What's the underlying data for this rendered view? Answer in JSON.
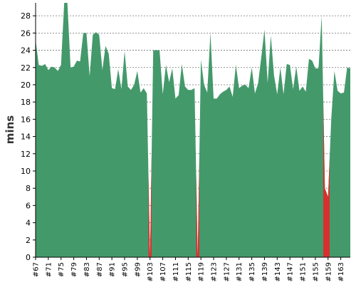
{
  "chart_data": {
    "type": "area",
    "title": "",
    "xlabel": "",
    "ylabel": "mins",
    "ylim": [
      0,
      29.5
    ],
    "yticks": [
      0,
      2,
      4,
      6,
      8,
      10,
      12,
      14,
      16,
      18,
      20,
      22,
      24,
      26,
      28
    ],
    "grid": true,
    "x_prefix": "#",
    "x": [
      67,
      68,
      69,
      70,
      71,
      72,
      73,
      74,
      75,
      76,
      77,
      78,
      79,
      80,
      81,
      82,
      83,
      84,
      85,
      86,
      87,
      88,
      89,
      90,
      91,
      92,
      93,
      94,
      95,
      96,
      97,
      98,
      99,
      100,
      101,
      102,
      103,
      104,
      105,
      106,
      107,
      108,
      109,
      110,
      111,
      112,
      113,
      114,
      115,
      116,
      117,
      118,
      119,
      120,
      121,
      122,
      123,
      124,
      125,
      126,
      127,
      128,
      129,
      130,
      131,
      132,
      133,
      134,
      135,
      136,
      137,
      138,
      139,
      140,
      141,
      142,
      143,
      144,
      145,
      146,
      147,
      148,
      149,
      150,
      151,
      152,
      153,
      154,
      155,
      156,
      157,
      158,
      159,
      160,
      161,
      162,
      163,
      164,
      165,
      166
    ],
    "values": [
      25.2,
      22.3,
      22.2,
      22.4,
      21.7,
      22.1,
      22.0,
      21.6,
      22.3,
      29.5,
      29.5,
      22.0,
      22.1,
      22.8,
      22.7,
      26.0,
      26.0,
      21.0,
      25.8,
      26.1,
      25.8,
      21.7,
      24.5,
      23.6,
      19.6,
      19.5,
      21.8,
      19.5,
      23.9,
      19.8,
      19.4,
      20.0,
      21.6,
      19.1,
      19.6,
      19.0,
      0,
      24.0,
      24.0,
      24.0,
      18.9,
      22.3,
      20.3,
      21.9,
      18.4,
      18.8,
      22.4,
      19.8,
      19.4,
      19.4,
      19.6,
      0,
      22.9,
      20.0,
      19.1,
      26.0,
      18.4,
      18.4,
      18.9,
      19.2,
      19.4,
      19.8,
      18.6,
      22.3,
      19.6,
      19.9,
      20.0,
      19.6,
      22.0,
      19.0,
      20.2,
      23.2,
      26.4,
      20.2,
      25.7,
      21.1,
      18.9,
      22.0,
      18.9,
      22.4,
      22.3,
      19.5,
      22.1,
      19.3,
      19.8,
      19.2,
      23.0,
      22.8,
      21.9,
      21.9,
      28.0,
      8.0,
      7.0,
      16.0,
      21.6,
      19.3,
      19.0,
      19.1,
      22.0,
      21.9
    ],
    "x_tick_every": 4,
    "colors": {
      "area": "#44996b",
      "failure": "#d9302e"
    }
  }
}
